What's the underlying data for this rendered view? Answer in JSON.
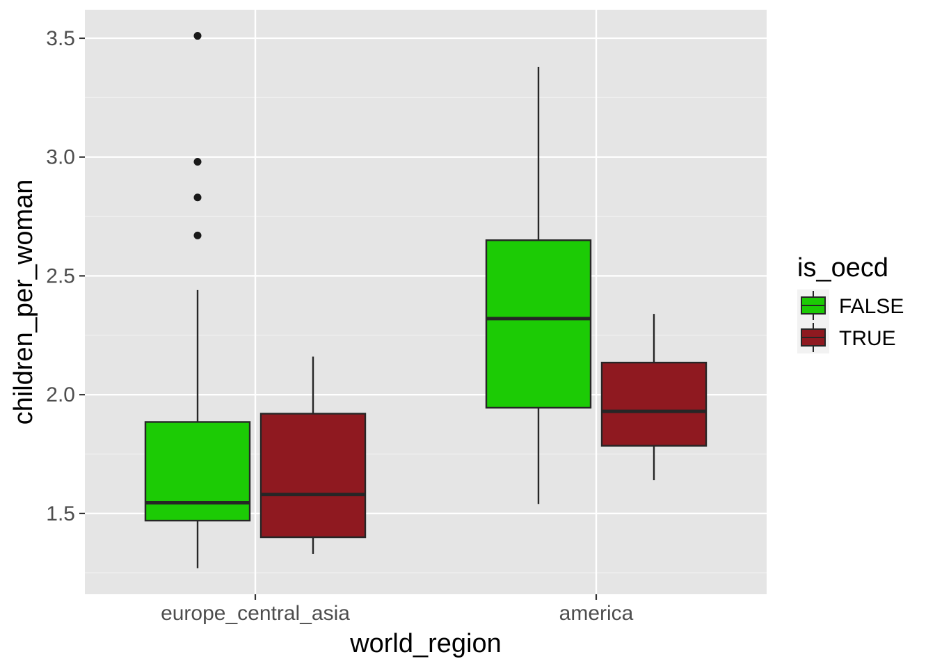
{
  "chart_data": {
    "type": "boxplot",
    "xlabel": "world_region",
    "ylabel": "children_per_woman",
    "categories": [
      "europe_central_asia",
      "america"
    ],
    "ylim": [
      1.16,
      3.62
    ],
    "yticks": [
      1.5,
      2.0,
      2.5,
      3.0,
      3.5
    ],
    "ytick_labels": [
      "1.5",
      "2.0",
      "2.5",
      "3.0",
      "3.5"
    ],
    "grid": true,
    "legend": {
      "title": "is_oecd",
      "position": "right",
      "entries": [
        "FALSE",
        "TRUE"
      ]
    },
    "series": [
      {
        "name": "FALSE",
        "color": "#1ccb05",
        "boxes": [
          {
            "category": "europe_central_asia",
            "whisker_low": 1.27,
            "q1": 1.47,
            "median": 1.545,
            "q3": 1.885,
            "whisker_high": 2.44,
            "outliers": [
              2.67,
              2.83,
              2.98,
              3.51
            ]
          },
          {
            "category": "america",
            "whisker_low": 1.54,
            "q1": 1.945,
            "median": 2.32,
            "q3": 2.65,
            "whisker_high": 3.38,
            "outliers": []
          }
        ]
      },
      {
        "name": "TRUE",
        "color": "#8f1920",
        "boxes": [
          {
            "category": "europe_central_asia",
            "whisker_low": 1.33,
            "q1": 1.4,
            "median": 1.58,
            "q3": 1.92,
            "whisker_high": 2.16,
            "outliers": []
          },
          {
            "category": "america",
            "whisker_low": 1.64,
            "q1": 1.785,
            "median": 1.93,
            "q3": 2.135,
            "whisker_high": 2.34,
            "outliers": []
          }
        ]
      }
    ]
  }
}
